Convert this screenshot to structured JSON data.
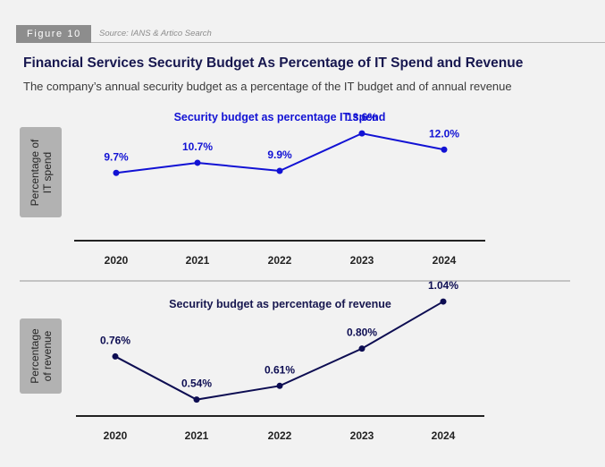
{
  "figure": {
    "tag": "Figure 10",
    "source": "Source: IANS & Artico Search"
  },
  "title": "Financial Services Security Budget As Percentage of IT Spend and Revenue",
  "subtitle": "The company’s annual security budget as a percentage of the IT budget and of annual revenue",
  "colors": {
    "series_it": "#1212d4",
    "series_revenue": "#0d0d52",
    "axis": "#222222",
    "chart_title_it": "#1212d4",
    "chart_title_revenue": "#17174f"
  },
  "chart_data": [
    {
      "type": "line",
      "title": "Security budget as percentage IT spend",
      "ylabel_lines": [
        "Percentage of",
        "IT spend"
      ],
      "xlabel": "",
      "categories": [
        "2020",
        "2021",
        "2022",
        "2023",
        "2024"
      ],
      "values": [
        9.7,
        10.7,
        9.9,
        13.6,
        12.0
      ],
      "data_labels": [
        "9.7%",
        "10.7%",
        "9.9%",
        "13.6%",
        "12.0%"
      ],
      "ylim": [
        0,
        16
      ],
      "grid": false
    },
    {
      "type": "line",
      "title": "Security budget as percentage of revenue",
      "ylabel_lines": [
        "Percentage",
        "of revenue"
      ],
      "xlabel": "",
      "categories": [
        "2020",
        "2021",
        "2022",
        "2023",
        "2024"
      ],
      "values": [
        0.76,
        0.54,
        0.61,
        0.8,
        1.04
      ],
      "data_labels": [
        "0.76%",
        "0.54%",
        "0.61%",
        "0.80%",
        "1.04%"
      ],
      "ylim": [
        0,
        1.2
      ],
      "grid": false
    }
  ]
}
